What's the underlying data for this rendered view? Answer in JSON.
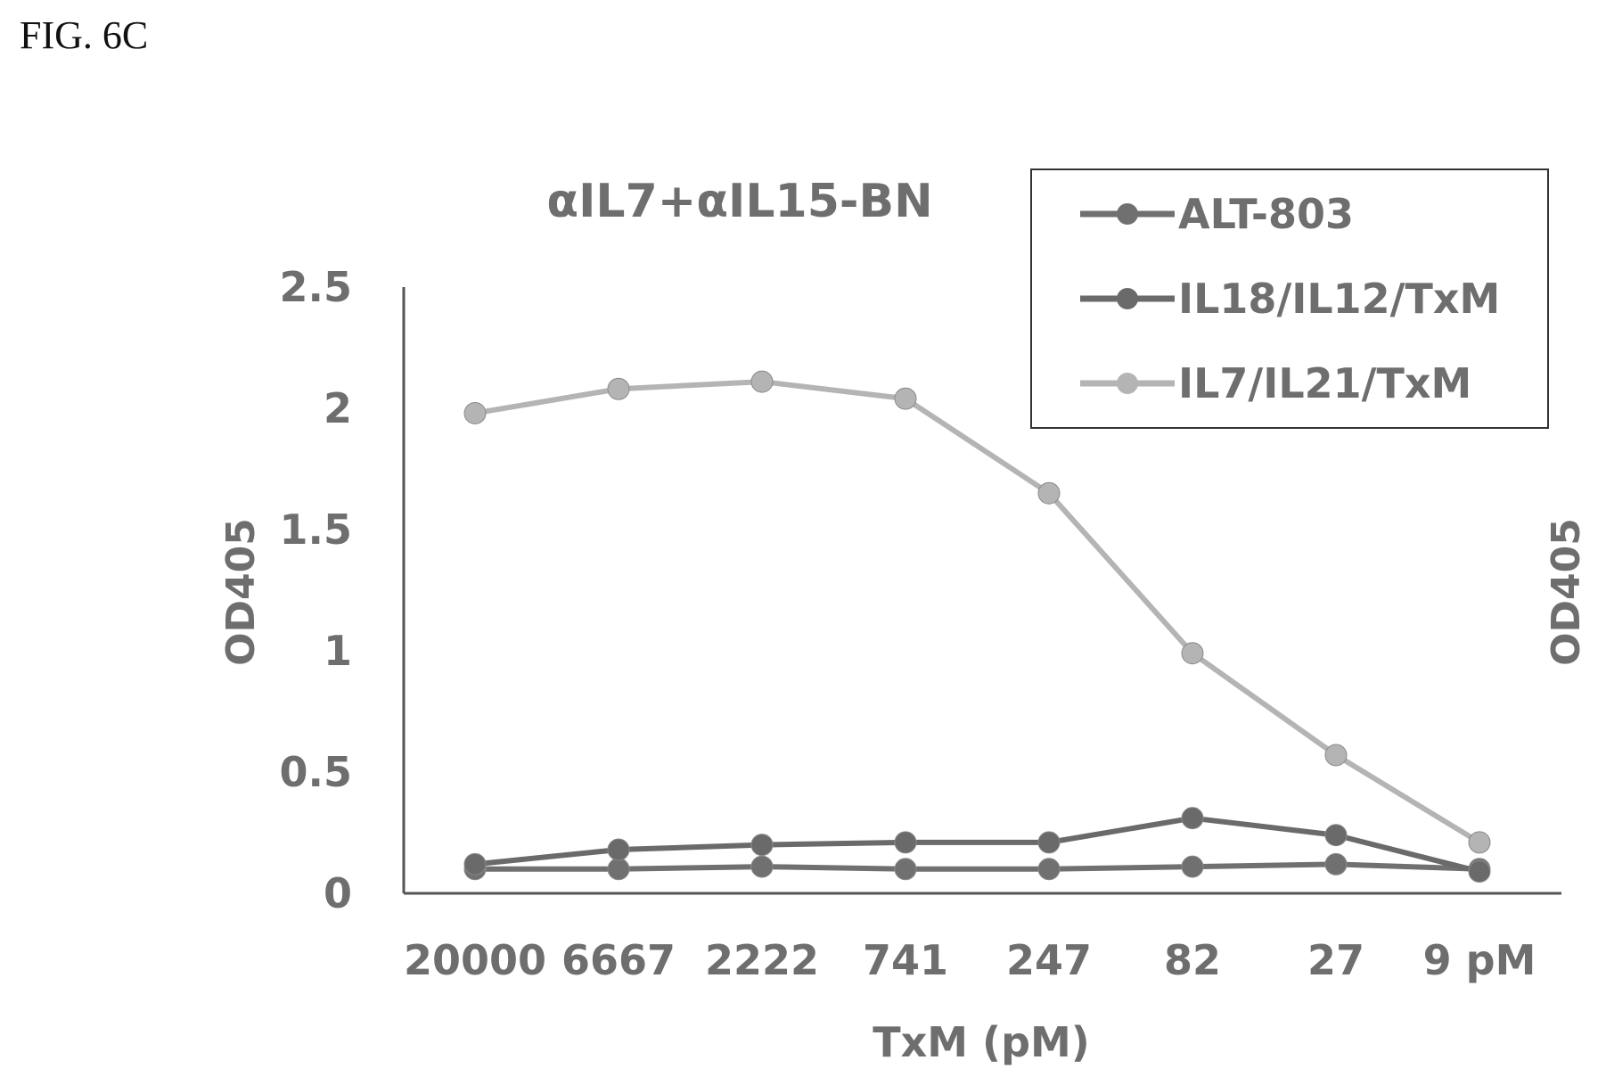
{
  "figure_label": "FIG. 6C",
  "chart_data": {
    "type": "line",
    "title": "αIL7+αIL15-BN",
    "xlabel": "TxM (pM)",
    "ylabel": "OD405",
    "y2label": "OD405",
    "categories": [
      "20000",
      "6667",
      "2222",
      "741",
      "247",
      "82",
      "27",
      "9 pM"
    ],
    "ylim": [
      0,
      2.5
    ],
    "yticks": [
      "0",
      "0.5",
      "1",
      "1.5",
      "2",
      "2.5"
    ],
    "legend_position": "top-right",
    "series": [
      {
        "name": "ALT-803",
        "color": "#707070",
        "values": [
          0.1,
          0.1,
          0.11,
          0.1,
          0.1,
          0.11,
          0.12,
          0.1
        ]
      },
      {
        "name": "IL18/IL12/TxM",
        "color": "#6a6a6a",
        "values": [
          0.12,
          0.18,
          0.2,
          0.21,
          0.21,
          0.31,
          0.24,
          0.09
        ]
      },
      {
        "name": "IL7/IL21/TxM",
        "color": "#b4b4b4",
        "values": [
          1.98,
          2.08,
          2.11,
          2.04,
          1.65,
          0.99,
          0.57,
          0.21
        ]
      }
    ]
  }
}
